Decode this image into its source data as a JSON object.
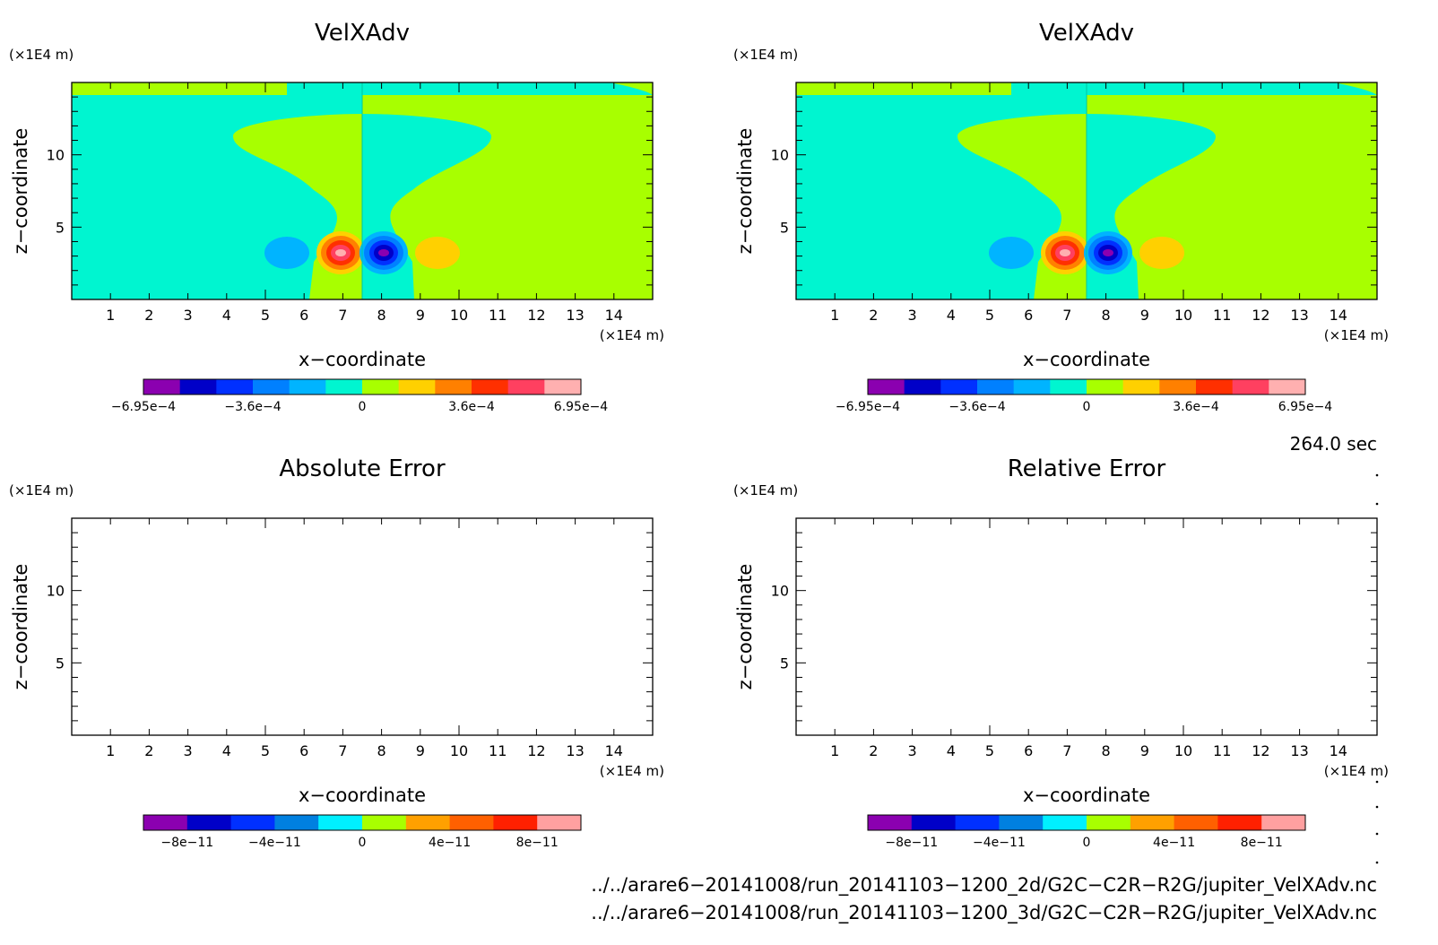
{
  "chart_data": [
    {
      "type": "heatmap",
      "title": "VelXAdv",
      "xlabel": "x−coordinate",
      "ylabel": "z−coordinate",
      "x_unit": "(×1E4 m)",
      "y_unit": "(×1E4 m)",
      "xlim": [
        0,
        15
      ],
      "ylim": [
        0,
        15
      ],
      "xticks": [
        "1",
        "2",
        "3",
        "4",
        "5",
        "6",
        "7",
        "8",
        "9",
        "10",
        "11",
        "12",
        "13",
        "14"
      ],
      "yticks": [
        "5",
        "10"
      ],
      "colorbar": {
        "levels": [
          "−6.95e−4",
          "−3.6e−4",
          "0",
          "3.6e−4",
          "6.95e−4"
        ],
        "colors": [
          "#8b00b0",
          "#0000c8",
          "#0030ff",
          "#0080ff",
          "#00b4ff",
          "#00f5d0",
          "#a8ff00",
          "#ffd000",
          "#ff8000",
          "#ff3000",
          "#ff4060",
          "#ffb0b0"
        ]
      }
    },
    {
      "type": "heatmap",
      "title": "VelXAdv",
      "xlabel": "x−coordinate",
      "ylabel": "z−coordinate",
      "x_unit": "(×1E4 m)",
      "y_unit": "(×1E4 m)",
      "xlim": [
        0,
        15
      ],
      "ylim": [
        0,
        15
      ],
      "xticks": [
        "1",
        "2",
        "3",
        "4",
        "5",
        "6",
        "7",
        "8",
        "9",
        "10",
        "11",
        "12",
        "13",
        "14"
      ],
      "yticks": [
        "5",
        "10"
      ],
      "colorbar": {
        "levels": [
          "−6.95e−4",
          "−3.6e−4",
          "0",
          "3.6e−4",
          "6.95e−4"
        ],
        "colors": [
          "#8b00b0",
          "#0000c8",
          "#0030ff",
          "#0080ff",
          "#00b4ff",
          "#00f5d0",
          "#a8ff00",
          "#ffd000",
          "#ff8000",
          "#ff3000",
          "#ff4060",
          "#ffb0b0"
        ]
      }
    },
    {
      "type": "heatmap",
      "title": "Absolute Error",
      "xlabel": "x−coordinate",
      "ylabel": "z−coordinate",
      "x_unit": "(×1E4 m)",
      "y_unit": "(×1E4 m)",
      "xlim": [
        0,
        15
      ],
      "ylim": [
        0,
        15
      ],
      "xticks": [
        "1",
        "2",
        "3",
        "4",
        "5",
        "6",
        "7",
        "8",
        "9",
        "10",
        "11",
        "12",
        "13",
        "14"
      ],
      "yticks": [
        "5",
        "10"
      ],
      "colorbar": {
        "levels": [
          "−8e−11",
          "−4e−11",
          "0",
          "4e−11",
          "8e−11"
        ],
        "colors": [
          "#8b00b0",
          "#0000c8",
          "#0030ff",
          "#0080e0",
          "#00f0ff",
          "#a8ff00",
          "#ffa000",
          "#ff6000",
          "#ff2000",
          "#ffa0a0"
        ]
      }
    },
    {
      "type": "heatmap",
      "title": "Relative Error",
      "xlabel": "x−coordinate",
      "ylabel": "z−coordinate",
      "x_unit": "(×1E4 m)",
      "y_unit": "(×1E4 m)",
      "xlim": [
        0,
        15
      ],
      "ylim": [
        0,
        15
      ],
      "xticks": [
        "1",
        "2",
        "3",
        "4",
        "5",
        "6",
        "7",
        "8",
        "9",
        "10",
        "11",
        "12",
        "13",
        "14"
      ],
      "yticks": [
        "5",
        "10"
      ],
      "colorbar": {
        "levels": [
          "−8e−11",
          "−4e−11",
          "0",
          "4e−11",
          "8e−11"
        ],
        "colors": [
          "#8b00b0",
          "#0000c8",
          "#0030ff",
          "#0080e0",
          "#00f0ff",
          "#a8ff00",
          "#ffa000",
          "#ff6000",
          "#ff2000",
          "#ffa0a0"
        ]
      }
    }
  ],
  "time_label": "264.0 sec",
  "file_paths": [
    "../../arare6−20141008/run_20141103−1200_2d/G2C−C2R−R2G/jupiter_VelXAdv.nc",
    "../../arare6−20141008/run_20141103−1200_3d/G2C−C2R−R2G/jupiter_VelXAdv.nc"
  ],
  "colors": {
    "background_cyan": "#00f5d0",
    "background_green": "#a8ff00"
  }
}
